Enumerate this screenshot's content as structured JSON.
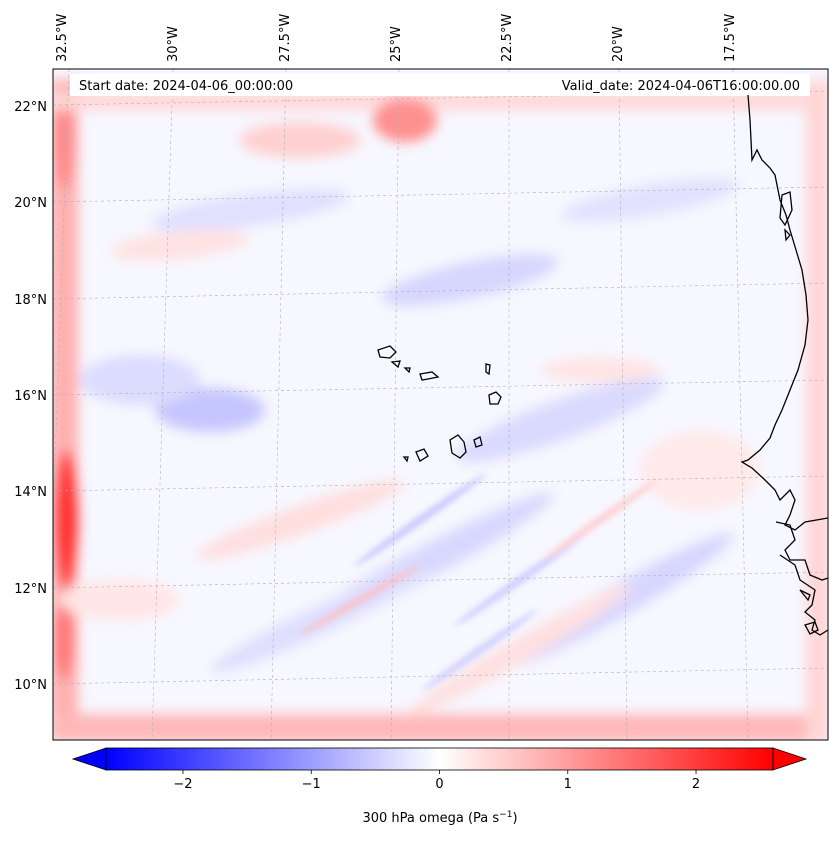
{
  "map": {
    "header_left": "Start date: 2024-04-06_00:00:00",
    "header_right": "Valid_date: 2024-04-06T16:00:00.00",
    "lon_labels": [
      "32.5°W",
      "30°W",
      "27.5°W",
      "25°W",
      "22.5°W",
      "20°W",
      "17.5°W"
    ],
    "lat_labels": [
      "22°N",
      "20°N",
      "18°N",
      "16°N",
      "14°N",
      "12°N",
      "10°N"
    ],
    "field": "300 hPa omega",
    "colors": {
      "negative": "#0000ff",
      "neutral": "#ffffff",
      "positive": "#ff0000",
      "coast": "#000000"
    }
  },
  "colorbar": {
    "title_main": "300 hPa omega (Pa s",
    "title_exp": "−1",
    "title_end": ")",
    "ticks": [
      "−2",
      "−1",
      "0",
      "1",
      "2"
    ],
    "tick_values": [
      -2,
      -1,
      0,
      1,
      2
    ],
    "range": [
      -2.6,
      2.6
    ],
    "extend": "both"
  }
}
